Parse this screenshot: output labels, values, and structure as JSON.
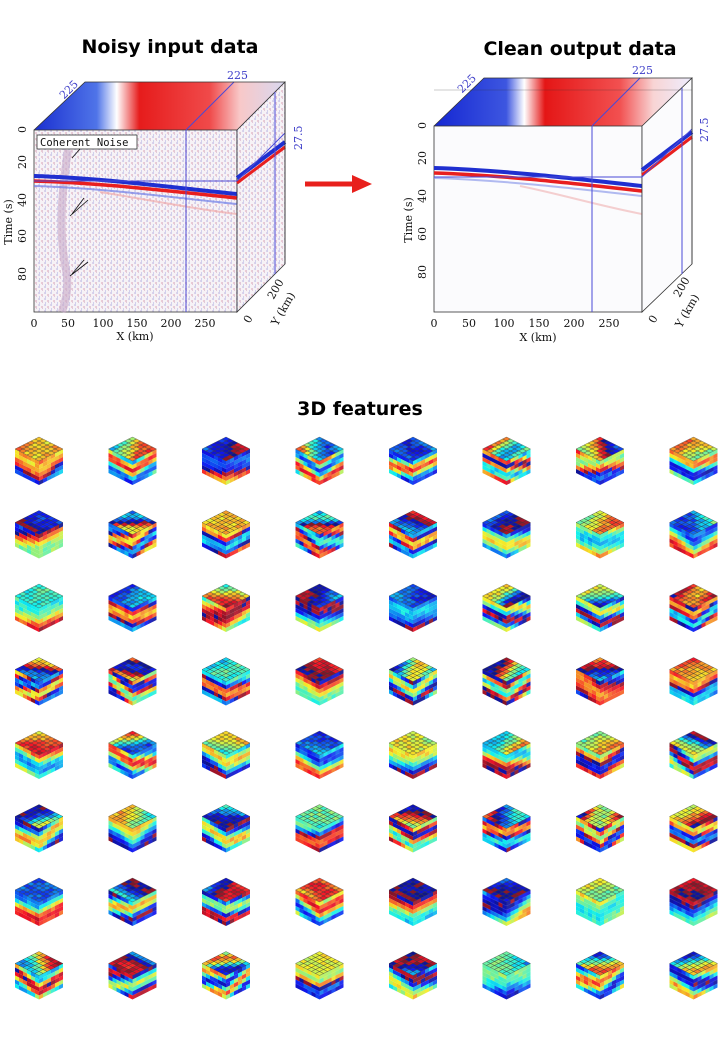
{
  "titles": {
    "noisy": "Noisy input data",
    "clean": "Clean output data",
    "features": "3D features"
  },
  "noisy_panel": {
    "annotation": "Coherent Noise",
    "axis_time_label": "Time (s)",
    "axis_x_label": "X (km)",
    "axis_y_label": "Y (km)",
    "time_ticks": [
      "0",
      "20",
      "40",
      "60",
      "80"
    ],
    "x_ticks": [
      "0",
      "50",
      "100",
      "150",
      "200",
      "250"
    ],
    "y_ticks": [
      "0",
      "200"
    ],
    "slice_labels": {
      "top_x": "225",
      "top_y": "225",
      "side": "27.5"
    }
  },
  "clean_panel": {
    "axis_time_label": "Time (s)",
    "axis_x_label": "X (km)",
    "axis_y_label": "Y (km)",
    "time_ticks": [
      "0",
      "20",
      "40",
      "60",
      "80"
    ],
    "x_ticks": [
      "0",
      "50",
      "100",
      "150",
      "200",
      "250"
    ],
    "y_ticks": [
      "0",
      "200"
    ],
    "slice_labels": {
      "top_x": "225",
      "top_y": "225",
      "side": "27.5"
    }
  },
  "colors": {
    "seismic_red": "#e81f1f",
    "seismic_blue": "#1f2fd0",
    "slice_line": "#4a4ad8",
    "arrow": "#e8201c"
  },
  "feature_grid": {
    "rows": 8,
    "cols": 8,
    "colormap": "jet"
  }
}
